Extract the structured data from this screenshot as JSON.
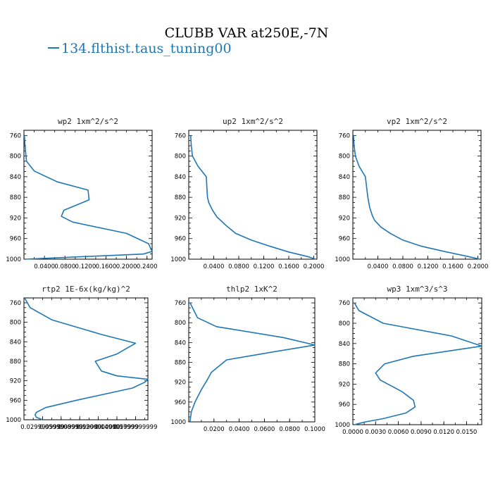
{
  "title": "CLUBB VAR at250E,-7N",
  "legend": {
    "label": "134.flthist.taus_tuning00",
    "color": "#1f77b4"
  },
  "chart_data": [
    {
      "type": "line",
      "title": "wp2  1xm^2/s^2",
      "ylim": [
        1000,
        750
      ],
      "yticks": [
        760,
        800,
        840,
        880,
        920,
        960,
        1000
      ],
      "xlim": [
        0,
        0.25
      ],
      "xticks": [
        "0.0400",
        "0.0800",
        "0.1200",
        "0.1600",
        "0.2000",
        "0.2400"
      ],
      "xtick_values": [
        0.04,
        0.08,
        0.12,
        0.16,
        0.2,
        0.24
      ],
      "series": [
        {
          "x": [
            0.001,
            0.002,
            0.005,
            0.02,
            0.065,
            0.125,
            0.127,
            0.078,
            0.073,
            0.095,
            0.2,
            0.243,
            0.25,
            0.233,
            0.002
          ],
          "y": [
            760,
            780,
            810,
            829,
            850,
            866,
            885,
            905,
            917,
            928,
            950,
            970,
            985,
            990,
            1000
          ]
        }
      ]
    },
    {
      "type": "line",
      "title": "up2  1xm^2/s^2",
      "ylim": [
        1000,
        750
      ],
      "yticks": [
        760,
        800,
        840,
        880,
        920,
        960,
        1000
      ],
      "xlim": [
        0,
        0.205
      ],
      "xticks": [
        "0.0400",
        "0.0800",
        "0.1200",
        "0.1600",
        "0.2000"
      ],
      "xtick_values": [
        0.04,
        0.08,
        0.12,
        0.16,
        0.2
      ],
      "series": [
        {
          "x": [
            0.003,
            0.004,
            0.006,
            0.015,
            0.028,
            0.029,
            0.03,
            0.032,
            0.038,
            0.045,
            0.06,
            0.075,
            0.1,
            0.13,
            0.16,
            0.19,
            0.203
          ],
          "y": [
            760,
            780,
            800,
            820,
            840,
            860,
            880,
            890,
            905,
            918,
            935,
            950,
            963,
            975,
            986,
            995,
            1000
          ]
        }
      ]
    },
    {
      "type": "line",
      "title": "vp2  1xm^2/s^2",
      "ylim": [
        1000,
        750
      ],
      "yticks": [
        760,
        800,
        840,
        880,
        920,
        960,
        1000
      ],
      "xlim": [
        0,
        0.205
      ],
      "xticks": [
        "0.0400",
        "0.0800",
        "0.1200",
        "0.1600",
        "0.2000"
      ],
      "xtick_values": [
        0.04,
        0.08,
        0.12,
        0.16,
        0.2
      ],
      "series": [
        {
          "x": [
            0.001,
            0.002,
            0.004,
            0.01,
            0.02,
            0.022,
            0.024,
            0.027,
            0.031,
            0.035,
            0.045,
            0.06,
            0.08,
            0.11,
            0.15,
            0.185,
            0.203
          ],
          "y": [
            760,
            780,
            800,
            820,
            840,
            860,
            880,
            900,
            915,
            925,
            938,
            950,
            963,
            975,
            986,
            995,
            1000
          ]
        }
      ]
    },
    {
      "type": "line",
      "title": "rtp2  1E-6x(kg/kg)^2",
      "ylim": [
        1000,
        750
      ],
      "yticks": [
        760,
        800,
        840,
        880,
        920,
        960,
        1000
      ],
      "xlim": [
        0,
        0.2
      ],
      "xticks": [
        "0.0299999999",
        "0.0599999999",
        "0.0899999999",
        "0.1200000000",
        "0.1499999999",
        "0.1799999999"
      ],
      "xtick_values": [
        0.03,
        0.06,
        0.09,
        0.12,
        0.15,
        0.18
      ],
      "series": [
        {
          "x": [
            0.001,
            0.01,
            0.045,
            0.125,
            0.18,
            0.15,
            0.115,
            0.125,
            0.15,
            0.2,
            0.195,
            0.175,
            0.085,
            0.035,
            0.02,
            0.018,
            0.02,
            0.03
          ],
          "y": [
            750,
            770,
            795,
            825,
            843,
            865,
            880,
            900,
            910,
            917,
            923,
            935,
            960,
            975,
            985,
            990,
            995,
            1000
          ]
        }
      ]
    },
    {
      "type": "line",
      "title": "thlp2  1xK^2",
      "ylim": [
        1000,
        750
      ],
      "yticks": [
        760,
        800,
        840,
        880,
        920,
        960,
        1000
      ],
      "xlim": [
        0,
        0.1
      ],
      "xticks": [
        "0.0200",
        "0.0400",
        "0.0600",
        "0.0800",
        "0.1000"
      ],
      "xtick_values": [
        0.02,
        0.04,
        0.06,
        0.08,
        0.1
      ],
      "series": [
        {
          "x": [
            0.001,
            0.004,
            0.007,
            0.022,
            0.075,
            0.1,
            0.06,
            0.03,
            0.018,
            0.014,
            0.01,
            0.005,
            0.002,
            0.001
          ],
          "y": [
            760,
            775,
            790,
            808,
            830,
            845,
            862,
            875,
            900,
            918,
            935,
            960,
            980,
            1000
          ]
        }
      ]
    },
    {
      "type": "line",
      "title": "wp3  1xm^3/s^3",
      "ylim": [
        1000,
        750
      ],
      "yticks": [
        760,
        800,
        840,
        880,
        920,
        960,
        1000
      ],
      "xlim": [
        0,
        0.017
      ],
      "xticks": [
        "0.0000",
        "0.0030",
        "0.0060",
        "0.0090",
        "0.0120",
        "0.0150"
      ],
      "xtick_values": [
        0.0,
        0.003,
        0.006,
        0.009,
        0.012,
        0.015
      ],
      "series": [
        {
          "x": [
            0.0002,
            0.0008,
            0.004,
            0.013,
            0.017,
            0.008,
            0.0042,
            0.003,
            0.0036,
            0.0065,
            0.008,
            0.0082,
            0.007,
            0.004,
            0.0015,
            0.0002
          ],
          "y": [
            760,
            775,
            800,
            825,
            845,
            865,
            880,
            898,
            912,
            935,
            952,
            965,
            977,
            988,
            995,
            1000
          ]
        }
      ]
    }
  ]
}
